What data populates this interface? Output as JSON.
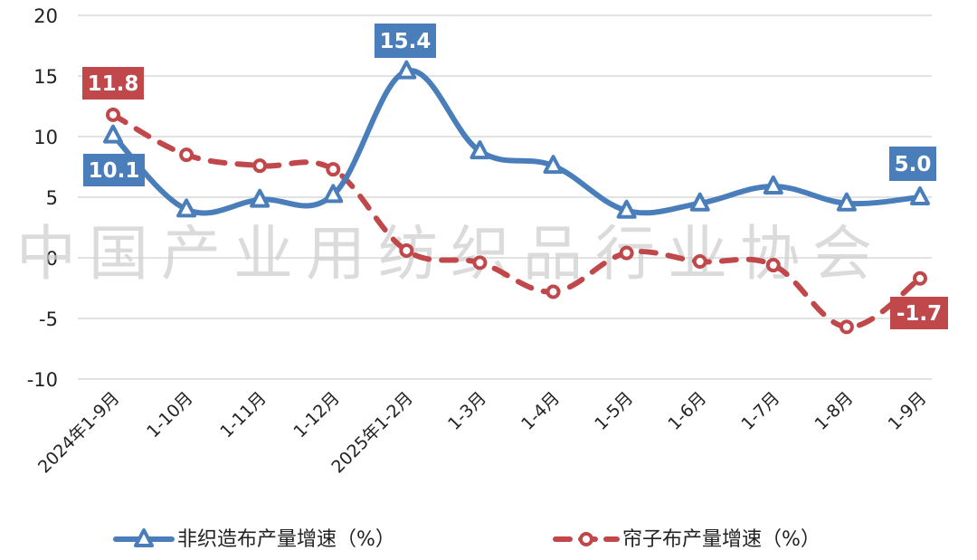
{
  "chart_data": {
    "type": "line",
    "title": "",
    "xlabel": "",
    "ylabel": "",
    "ylim": [
      -10,
      20
    ],
    "yticks": [
      20,
      15,
      10,
      5,
      0,
      -5,
      -10
    ],
    "grid": true,
    "legend_position": "bottom",
    "watermark": "中国产业用纺织品行业协会",
    "categories": [
      "2024年1-9月",
      "1-10月",
      "1-11月",
      "1-12月",
      "2025年1-2月",
      "1-3月",
      "1-4月",
      "1-5月",
      "1-6月",
      "1-7月",
      "1-8月",
      "1-9月"
    ],
    "series": [
      {
        "name": "非织造布产量增速（%）",
        "color": "#4a7ebb",
        "marker": "triangle",
        "line_style": "solid",
        "values": [
          10.1,
          4.0,
          4.8,
          5.2,
          15.4,
          8.8,
          7.6,
          3.9,
          4.5,
          5.9,
          4.5,
          5.0
        ],
        "data_labels": [
          {
            "index": 0,
            "text": "10.1"
          },
          {
            "index": 4,
            "text": "15.4"
          },
          {
            "index": 11,
            "text": "5.0"
          }
        ]
      },
      {
        "name": "帘子布产量增速（%）",
        "color": "#c0484a",
        "marker": "circle",
        "line_style": "dashed",
        "values": [
          11.8,
          8.5,
          7.6,
          7.3,
          0.6,
          -0.4,
          -2.8,
          0.4,
          -0.3,
          -0.6,
          -5.7,
          -1.7
        ],
        "data_labels": [
          {
            "index": 0,
            "text": "11.8"
          },
          {
            "index": 11,
            "text": "-1.7"
          }
        ]
      }
    ]
  }
}
